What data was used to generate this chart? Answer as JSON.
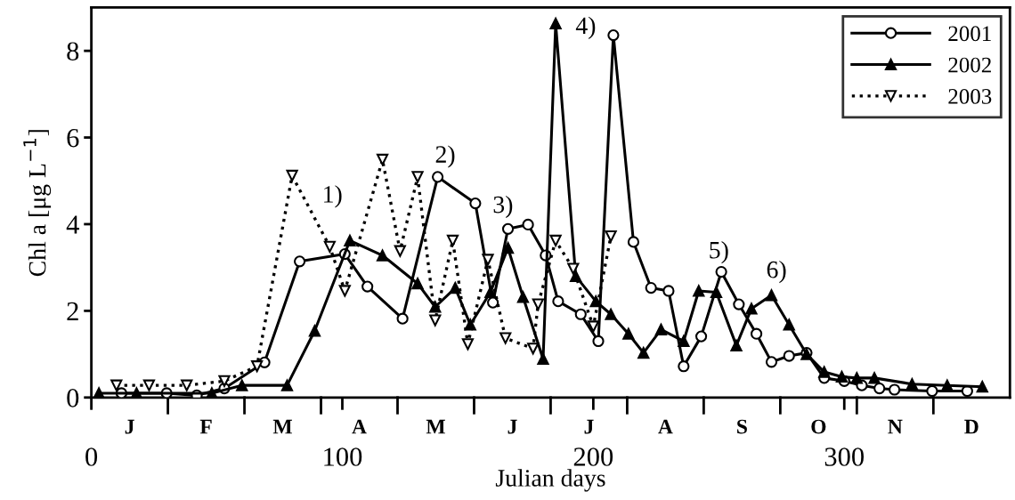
{
  "chart_data": {
    "type": "line",
    "xlabel": "Julian days",
    "ylabel": "Chl a [μg L$^{−1}$]",
    "xlim": [
      0,
      366
    ],
    "xticks": [
      0,
      100,
      200,
      300
    ],
    "ylim": [
      0,
      9
    ],
    "yticks": [
      0,
      2,
      4,
      6,
      8
    ],
    "grid": false,
    "legend": "top right",
    "series": [
      {
        "name": "2001",
        "color": "#000000",
        "marker": "circle",
        "line_style": "solid",
        "x": [
          12,
          30,
          42,
          53,
          69,
          83,
          101,
          110,
          124,
          138,
          153,
          160,
          166,
          174,
          181,
          186,
          195,
          202,
          208,
          216,
          223,
          230,
          236,
          243,
          251,
          258,
          265,
          271,
          278,
          285,
          292,
          300,
          307,
          314,
          320,
          335,
          349
        ],
        "values": [
          0.1,
          0.1,
          0.05,
          0.21,
          0.81,
          3.14,
          3.31,
          2.56,
          1.82,
          5.09,
          4.48,
          2.19,
          3.89,
          3.99,
          3.28,
          2.22,
          1.92,
          1.3,
          8.36,
          3.59,
          2.53,
          2.46,
          0.72,
          1.41,
          2.9,
          2.15,
          1.47,
          0.82,
          0.96,
          1.03,
          0.45,
          0.38,
          0.28,
          0.21,
          0.18,
          0.15,
          0.15
        ]
      },
      {
        "name": "2002",
        "color": "#000000",
        "marker": "triangle",
        "line_style": "solid",
        "x": [
          3,
          18,
          48,
          60,
          78,
          89,
          103,
          116,
          130,
          137,
          145,
          151,
          159,
          166,
          172,
          180,
          185,
          193,
          201,
          207,
          214,
          220,
          227,
          236,
          242,
          249,
          257,
          263,
          271,
          278,
          285,
          292,
          299,
          305,
          312,
          327,
          341,
          355
        ],
        "values": [
          0.1,
          0.1,
          0.1,
          0.28,
          0.28,
          1.54,
          3.62,
          3.28,
          2.63,
          2.09,
          2.53,
          1.68,
          2.43,
          3.45,
          2.32,
          0.89,
          8.63,
          2.8,
          2.22,
          1.92,
          1.47,
          1.03,
          1.57,
          1.3,
          2.46,
          2.43,
          1.2,
          2.05,
          2.36,
          1.68,
          1.0,
          0.59,
          0.48,
          0.45,
          0.45,
          0.31,
          0.28,
          0.25
        ]
      },
      {
        "name": "2003",
        "color": "#000000",
        "marker": "triangle_down",
        "line_style": "dotted",
        "x": [
          10,
          23,
          38,
          53,
          66,
          80,
          95,
          101,
          116,
          123,
          130,
          137,
          144,
          150,
          158,
          165,
          176,
          178,
          185,
          192,
          200,
          207
        ],
        "values": [
          0.28,
          0.28,
          0.28,
          0.38,
          0.72,
          5.12,
          3.48,
          2.46,
          5.49,
          3.38,
          5.09,
          1.78,
          3.62,
          1.23,
          3.18,
          1.37,
          1.13,
          2.15,
          3.62,
          2.97,
          1.64,
          3.72
        ]
      }
    ],
    "annotations": [
      "1)",
      "2)",
      "3)",
      "4)",
      "5)",
      "6)",
      "J",
      "F",
      "M",
      "A",
      "M",
      "J",
      "J",
      "A",
      "S",
      "O",
      "N",
      "D"
    ]
  }
}
